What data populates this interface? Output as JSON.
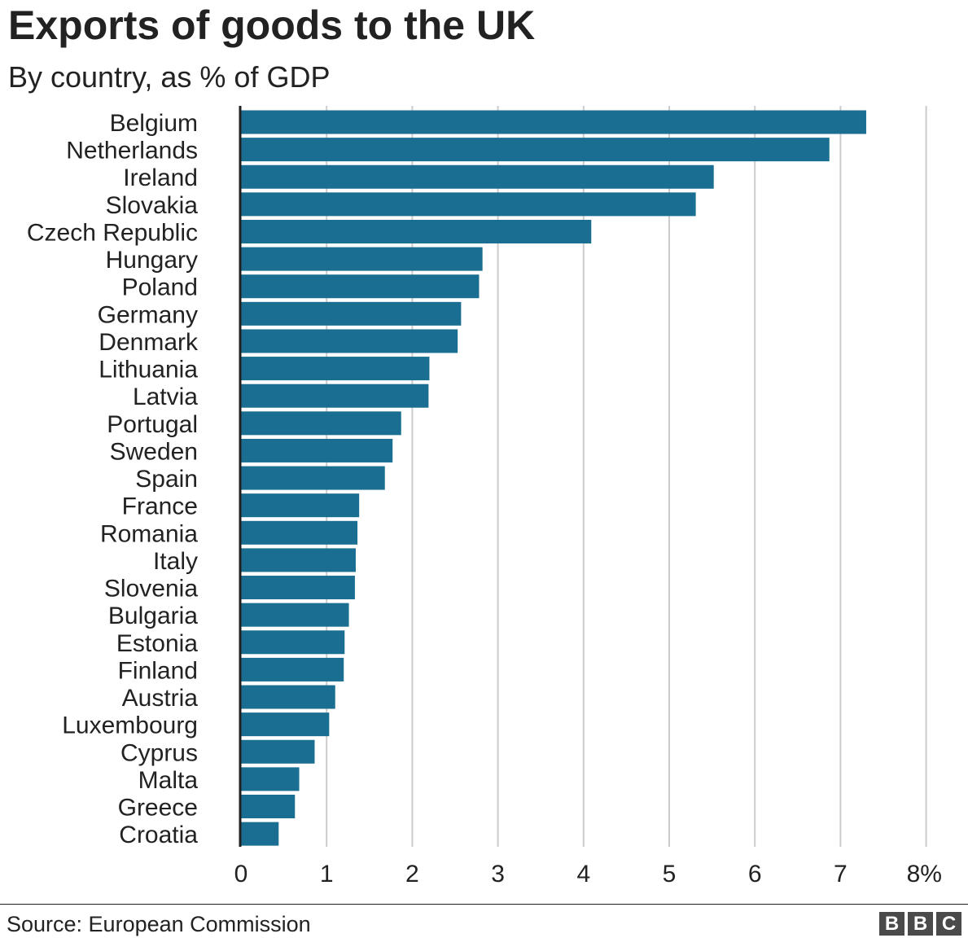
{
  "header": {
    "title": "Exports of goods to the UK",
    "subtitle": "By country, as % of GDP"
  },
  "footer": {
    "source": "Source: European Commission",
    "logo_letters": [
      "B",
      "B",
      "C"
    ]
  },
  "colors": {
    "bar": "#1a6e91",
    "grid": "#cccccc",
    "axis": "#222222",
    "text": "#222222"
  },
  "chart_data": {
    "type": "bar",
    "orientation": "horizontal",
    "title": "Exports of goods to the UK",
    "subtitle": "By country, as % of GDP",
    "categories": [
      "Belgium",
      "Netherlands",
      "Ireland",
      "Slovakia",
      "Czech Republic",
      "Hungary",
      "Poland",
      "Germany",
      "Denmark",
      "Lithuania",
      "Latvia",
      "Portugal",
      "Sweden",
      "Spain",
      "France",
      "Romania",
      "Italy",
      "Slovenia",
      "Bulgaria",
      "Estonia",
      "Finland",
      "Austria",
      "Luxembourg",
      "Cyprus",
      "Malta",
      "Greece",
      "Croatia"
    ],
    "values": [
      7.3,
      6.87,
      5.52,
      5.31,
      4.09,
      2.82,
      2.78,
      2.57,
      2.53,
      2.2,
      2.19,
      1.87,
      1.77,
      1.68,
      1.38,
      1.36,
      1.34,
      1.33,
      1.26,
      1.21,
      1.2,
      1.1,
      1.03,
      0.86,
      0.68,
      0.63,
      0.44
    ],
    "xlim": [
      0,
      8
    ],
    "xticks": [
      0,
      1,
      2,
      3,
      4,
      5,
      6,
      7,
      8
    ],
    "xtick_labels": [
      "0",
      "1",
      "2",
      "3",
      "4",
      "5",
      "6",
      "7",
      "8%"
    ],
    "grid": true,
    "legend": "none",
    "source": "Source: European Commission"
  }
}
